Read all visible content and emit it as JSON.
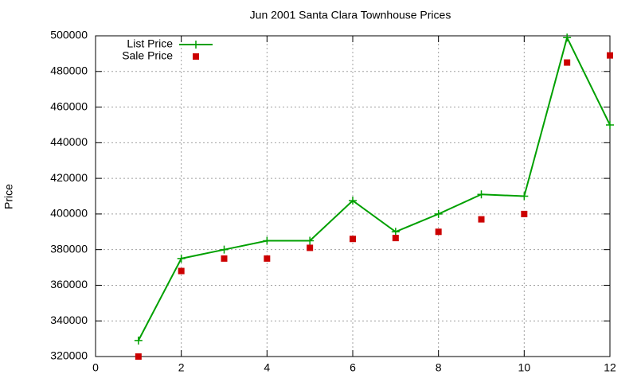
{
  "chart_data": {
    "type": "line",
    "title": "Jun 2001 Santa Clara Townhouse Prices",
    "y_label": "Price",
    "x": [
      1,
      2,
      3,
      4,
      5,
      6,
      7,
      8,
      9,
      10,
      11,
      12
    ],
    "series": [
      {
        "name": "List Price",
        "color": "#00a000",
        "style": "linespoints",
        "values": [
          329000,
          375000,
          380000,
          385000,
          385000,
          407500,
          390000,
          400000,
          411000,
          410000,
          499000,
          450000
        ]
      },
      {
        "name": "Sale Price",
        "color": "#cc0000",
        "style": "points",
        "values": [
          320000,
          368000,
          375000,
          375000,
          381000,
          386000,
          386500,
          390000,
          397000,
          400000,
          485000,
          489000
        ]
      }
    ],
    "xlim": [
      0,
      12
    ],
    "xticks": [
      0,
      2,
      4,
      6,
      8,
      10,
      12
    ],
    "ylim": [
      320000,
      500000
    ],
    "yticks": [
      320000,
      340000,
      360000,
      380000,
      400000,
      420000,
      440000,
      460000,
      480000,
      500000
    ],
    "grid": true,
    "legend": "top-left"
  }
}
